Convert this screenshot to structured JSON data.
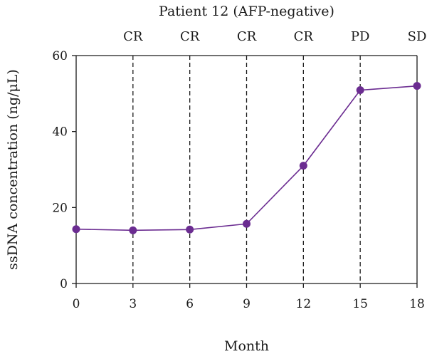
{
  "chart_data": {
    "type": "line",
    "title": "Patient 12 (AFP-negative)",
    "xlabel": "Month",
    "ylabel": "ssDNA concentration (ng/μL)",
    "x": [
      0,
      3,
      6,
      9,
      12,
      15,
      18
    ],
    "series": [
      {
        "values": [
          14.3,
          14.0,
          14.2,
          15.7,
          31.0,
          50.9,
          52.0
        ],
        "color": "#6b2c91"
      }
    ],
    "status_labels": [
      {
        "x": 3,
        "label": "CR"
      },
      {
        "x": 6,
        "label": "CR"
      },
      {
        "x": 9,
        "label": "CR"
      },
      {
        "x": 12,
        "label": "CR"
      },
      {
        "x": 15,
        "label": "PD"
      },
      {
        "x": 18,
        "label": "SD"
      }
    ],
    "xlim": [
      0,
      18
    ],
    "ylim": [
      0,
      60
    ],
    "xticks": [
      0,
      3,
      6,
      9,
      12,
      15,
      18
    ],
    "yticks": [
      0,
      20,
      40,
      60
    ],
    "grid": false,
    "reference_lines": "vertical dashed lines at each status label"
  }
}
